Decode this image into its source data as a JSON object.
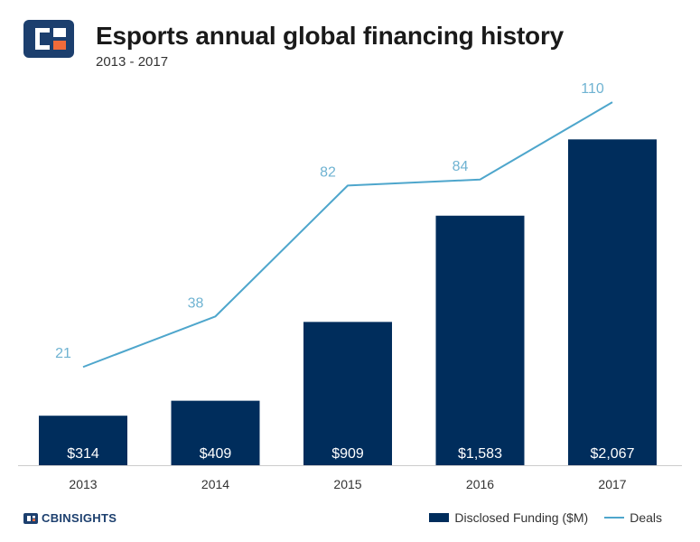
{
  "header": {
    "title": "Esports annual global financing history",
    "subtitle": "2013 - 2017"
  },
  "brand": {
    "logo_icon": "cb-insights-logo-icon",
    "name": "CBINSIGHTS"
  },
  "legend": {
    "bar_label": "Disclosed Funding ($M)",
    "line_label": "Deals"
  },
  "colors": {
    "bar": "#002d5c",
    "line": "#4ea6cc",
    "line_label": "#6fb3d2",
    "axis_text": "#333333"
  },
  "chart_data": {
    "type": "bar",
    "categories": [
      "2013",
      "2014",
      "2015",
      "2016",
      "2017"
    ],
    "series": [
      {
        "name": "Disclosed Funding ($M)",
        "type": "bar",
        "values": [
          314,
          409,
          909,
          1583,
          2067
        ],
        "labels": [
          "$314",
          "$409",
          "$909",
          "$1,583",
          "$2,067"
        ]
      },
      {
        "name": "Deals",
        "type": "line",
        "values": [
          21,
          38,
          82,
          84,
          110
        ],
        "labels": [
          "21",
          "38",
          "82",
          "84",
          "110"
        ]
      }
    ],
    "title": "Esports annual global financing history",
    "subtitle": "2013 - 2017",
    "xlabel": "",
    "ylabel": "",
    "grid": false,
    "legend_position": "bottom-right"
  }
}
